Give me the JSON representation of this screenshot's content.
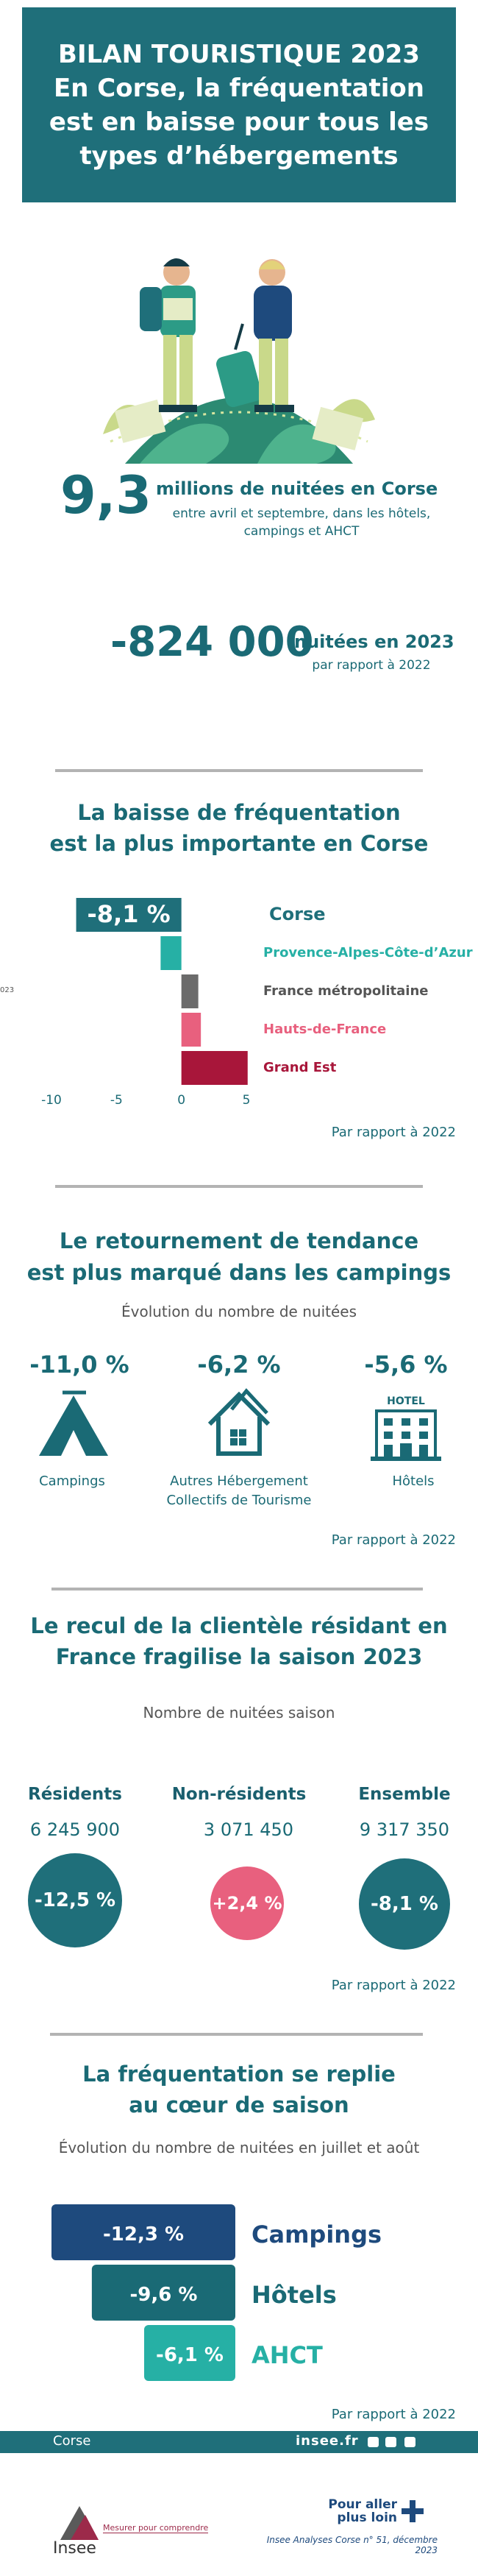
{
  "header": {
    "line1": "BILAN TOURISTIQUE 2023",
    "line2": "En Corse, la fréquentation",
    "line3": "est en baisse pour tous les",
    "line4": "types d’hébergements"
  },
  "key_numbers": {
    "big1": "9,3",
    "label1": "millions de nuitées en Corse",
    "sub1a": "entre avril et septembre, dans les hôtels,",
    "sub1b": "campings et AHCT",
    "big2": "-824 000",
    "label2": "nuitées en 2023",
    "sub2": "par rapport à 2022"
  },
  "section1": {
    "title1": "La baisse de fréquentation",
    "title2": "est la plus importante en Corse",
    "note": "Par rapport à 2022",
    "axis_cut_label": "023"
  },
  "section2": {
    "title1": "Le retournement de tendance",
    "title2": "est plus marqué dans les campings",
    "subtitle": "Évolution du nombre de nuitées",
    "items": [
      {
        "value": "-11,0 %",
        "label1": "Campings",
        "label2": "",
        "icon": "tent-icon"
      },
      {
        "value": "-6,2 %",
        "label1": "Autres Hébergement",
        "label2": "Collectifs de Tourisme",
        "icon": "house-icon"
      },
      {
        "value": "-5,6 %",
        "label1": "Hôtels",
        "label2": "",
        "icon": "hotel-icon",
        "sign": "HOTEL"
      }
    ],
    "note": "Par rapport à 2022"
  },
  "section3": {
    "title1": "Le recul de la clientèle résidant en",
    "title2": "France fragilise la saison 2023",
    "subtitle": "Nombre de nuitées saison",
    "groups": [
      {
        "name": "Résidents",
        "value": "6 245 900",
        "change": "-12,5 %",
        "color": "#1f6f7a"
      },
      {
        "name": "Non-résidents",
        "value": "3 071 450",
        "change": "+2,4 %",
        "color": "#e8607e"
      },
      {
        "name": "Ensemble",
        "value": "9 317 350",
        "change": "-8,1 %",
        "color": "#1f6f7a"
      }
    ],
    "note": "Par rapport à 2022"
  },
  "section4": {
    "title1": "La fréquentation se replie",
    "title2": "au cœur de saison",
    "subtitle": "Évolution du nombre de nuitées en juillet et août",
    "note": "Par rapport à 2022"
  },
  "chart_data": [
    {
      "type": "bar",
      "orientation": "horizontal",
      "categories": [
        "Corse",
        "Provence-Alpes-Côte-d’Azur",
        "France métropolitaine",
        "Hauts-de-France",
        "Grand Est"
      ],
      "values": [
        -8.1,
        -1.6,
        1.3,
        1.5,
        5.1
      ],
      "data_labels": [
        "-8,1 %",
        "",
        "",
        "",
        ""
      ],
      "xticks": [
        "-10",
        "-5",
        "0",
        "5"
      ],
      "xlim": [
        -10,
        5
      ],
      "colors": [
        "#1f6f7a",
        "#26b0a5",
        "#6b6b6b",
        "#e8607e",
        "#a8163a"
      ]
    },
    {
      "type": "bar",
      "orientation": "horizontal",
      "categories": [
        "Campings",
        "Hôtels",
        "AHCT"
      ],
      "values": [
        -12.3,
        -9.6,
        -6.1
      ],
      "data_labels": [
        "-12,3 %",
        "-9,6 %",
        "-6,1 %"
      ],
      "colors": [
        "#1e4a7d",
        "#1a6a75",
        "#26b0a5"
      ]
    }
  ],
  "footer": {
    "region": "Corse",
    "site": "insee.fr",
    "logo_text": "Insee",
    "tagline": "Mesurer pour comprendre",
    "cta1": "Pour aller",
    "cta2": "plus loin",
    "publication": "Insee Analyses Corse n° 51, décembre 2023"
  }
}
